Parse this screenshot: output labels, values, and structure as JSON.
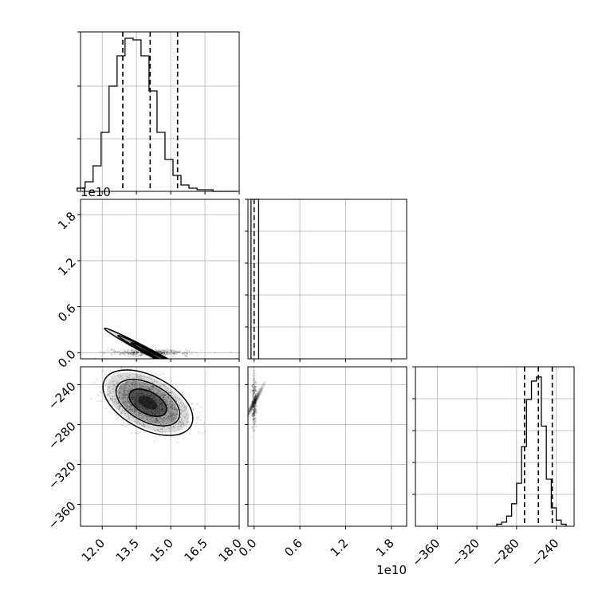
{
  "chart_data": {
    "type": "corner",
    "grid": true,
    "panels": [
      {
        "id": "p00",
        "kind": "histogram",
        "param": 0,
        "bin_edges": [
          10.9,
          11.25,
          11.6,
          11.95,
          12.3,
          12.65,
          13.0,
          13.35,
          13.7,
          14.05,
          14.4,
          14.75,
          15.1,
          15.45,
          15.8,
          16.15,
          16.5,
          16.85,
          17.2,
          17.55,
          17.9
        ],
        "counts": [
          2,
          6,
          16,
          37,
          66,
          85,
          96,
          95,
          85,
          63,
          37,
          20,
          10,
          4,
          2,
          1,
          1,
          0,
          0,
          0
        ],
        "ylim": [
          0,
          100
        ],
        "quantiles": [
          12.9,
          14.1,
          15.3
        ]
      },
      {
        "id": "p10",
        "kind": "hist2d",
        "params": [
          0,
          1
        ],
        "x_ticks": [],
        "y_ticks": [
          "0.0",
          "0.6",
          "1.2",
          "1.8"
        ],
        "y_ticks_values": [
          0.0,
          0.6,
          1.2,
          1.8
        ],
        "xlim": [
          11.05,
          18.0
        ],
        "ylim": [
          -0.08,
          2.0
        ],
        "y_offset": "1e10",
        "center": [
          14.1,
          0.0
        ],
        "spread": [
          0.9,
          0.02
        ],
        "contour_levels": [
          1.0,
          1.7,
          2.4
        ]
      },
      {
        "id": "p11",
        "kind": "histogram",
        "param": 1,
        "xlim": [
          -0.08,
          2.0
        ],
        "bin_edges": [
          -0.04,
          0.06
        ],
        "counts": [
          1
        ],
        "ylim": [
          0,
          1.0
        ],
        "quantiles": [
          0.0
        ]
      },
      {
        "id": "p20",
        "kind": "hist2d",
        "params": [
          0,
          2
        ],
        "x_ticks": [
          "12.0",
          "13.5",
          "15.0",
          "16.5",
          "18.0"
        ],
        "x_ticks_values": [
          12.0,
          13.5,
          15.0,
          16.5,
          18.0
        ],
        "y_ticks": [
          "−240",
          "−280",
          "−320",
          "−360"
        ],
        "y_ticks_values": [
          -240,
          -280,
          -320,
          -360
        ],
        "xlim": [
          11.05,
          18.0
        ],
        "ylim": [
          -382,
          -222
        ],
        "center": [
          14.0,
          -258
        ],
        "spread": [
          0.85,
          13
        ],
        "contour_levels": [
          1.0,
          1.7,
          2.4
        ]
      },
      {
        "id": "p21",
        "kind": "hist2d",
        "params": [
          1,
          2
        ],
        "x_ticks": [
          "0.0",
          "0.6",
          "1.2",
          "1.8"
        ],
        "x_ticks_values": [
          0.0,
          0.6,
          1.2,
          1.8
        ],
        "y_ticks": [],
        "x_offset": "1e10",
        "xlim": [
          -0.08,
          2.0
        ],
        "ylim": [
          -382,
          -222
        ],
        "center": [
          0.0,
          -258
        ],
        "spread": [
          0.015,
          13
        ]
      },
      {
        "id": "p22",
        "kind": "histogram",
        "param": 2,
        "bin_edges": [
          -300,
          -295,
          -290,
          -285,
          -280,
          -275,
          -270,
          -265,
          -260,
          -255,
          -250,
          -245,
          -240,
          -235,
          -230
        ],
        "counts": [
          1,
          2,
          5,
          11,
          21,
          39,
          62,
          71,
          73,
          49,
          23,
          9,
          3,
          1
        ],
        "x_ticks": [
          "−360",
          "−320",
          "−280",
          "−240"
        ],
        "x_ticks_values": [
          -360,
          -320,
          -280,
          -240
        ],
        "xlim": [
          -382,
          -222
        ],
        "ylim": [
          0,
          78
        ],
        "quantiles": [
          -272,
          -258,
          -244
        ]
      }
    ]
  }
}
